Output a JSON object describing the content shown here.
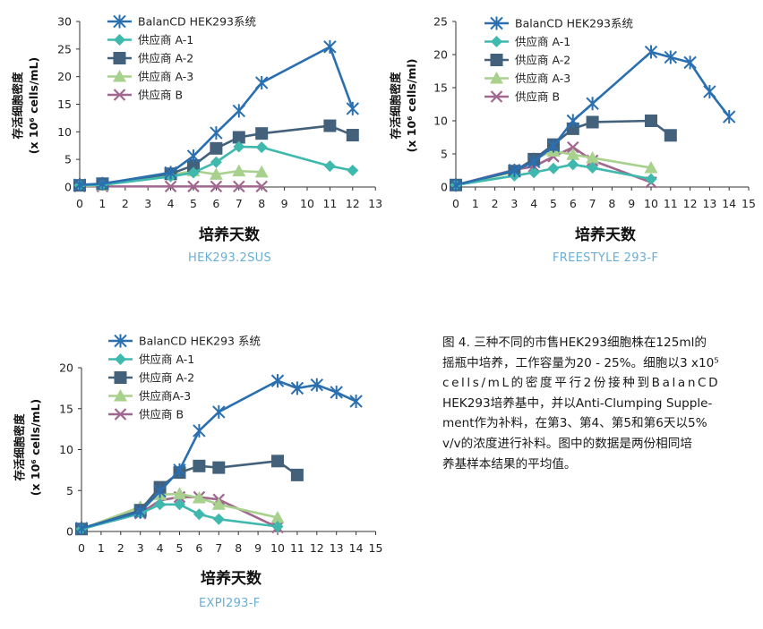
{
  "colors": {
    "balancd": "#2a6fb0",
    "a1": "#3fb8ad",
    "a2": "#44617b",
    "a3": "#a9d18e",
    "b": "#a0678f",
    "subtitle": "#6aaed6"
  },
  "chart_data": [
    {
      "type": "line",
      "subtitle": "HEK293.2SUS",
      "xlabel": "培养天数",
      "ylabel_line1": "存活细胞密度",
      "ylabel_line2": "(x 10⁶ cells/mL)",
      "xlim": [
        0,
        13
      ],
      "ylim": [
        0,
        30
      ],
      "xticks": [
        "0",
        "1",
        "2",
        "3",
        "4",
        "5",
        "6",
        "7",
        "8",
        "9",
        "10",
        "11",
        "12",
        "13"
      ],
      "yticks": [
        "0",
        "5",
        "10",
        "15",
        "20",
        "25",
        "30"
      ],
      "series": [
        {
          "name": "BalanCD HEK293系统",
          "marker": "star",
          "color_key": "balancd",
          "x": [
            0,
            1,
            4,
            5,
            6,
            7,
            8,
            11,
            12
          ],
          "y": [
            0.4,
            0.6,
            2.6,
            5.6,
            9.8,
            13.8,
            18.9,
            25.4,
            14.2
          ]
        },
        {
          "name": "供应商 A-1",
          "marker": "diamond",
          "color_key": "a1",
          "x": [
            0,
            1,
            4,
            5,
            6,
            7,
            8,
            11,
            12
          ],
          "y": [
            0.3,
            0.4,
            1.9,
            2.6,
            4.5,
            7.3,
            7.2,
            3.8,
            3.0
          ]
        },
        {
          "name": "供应商 A-2",
          "marker": "square",
          "color_key": "a2",
          "x": [
            0,
            1,
            4,
            5,
            6,
            7,
            8,
            11,
            12
          ],
          "y": [
            0.3,
            0.6,
            2.4,
            3.9,
            7.0,
            9.0,
            9.7,
            11.1,
            9.4
          ]
        },
        {
          "name": "供应商 A-3",
          "marker": "triangle",
          "color_key": "a3",
          "x": [
            0,
            1,
            4,
            5,
            6,
            7,
            8
          ],
          "y": [
            0.2,
            0.3,
            2.2,
            2.9,
            2.3,
            2.9,
            2.7
          ]
        },
        {
          "name": "供应商 B",
          "marker": "cross",
          "color_key": "b",
          "x": [
            0,
            1,
            4,
            5,
            6,
            7,
            8
          ],
          "y": [
            0.1,
            0.1,
            0.1,
            0.1,
            0.1,
            0.1,
            0.1
          ]
        }
      ]
    },
    {
      "type": "line",
      "subtitle": "FREESTYLE 293-F",
      "xlabel": "培养天数",
      "ylabel_line1": "存活细胞密度",
      "ylabel_line2": "(x 10⁶ cells/ml)",
      "xlim": [
        0,
        15
      ],
      "ylim": [
        0,
        25
      ],
      "xticks": [
        "0",
        "1",
        "2",
        "3",
        "4",
        "5",
        "6",
        "7",
        "8",
        "9",
        "10",
        "11",
        "12",
        "13",
        "14",
        "15"
      ],
      "yticks": [
        "0",
        "5",
        "10",
        "15",
        "20",
        "25"
      ],
      "series": [
        {
          "name": "BalanCD HEK293系统",
          "marker": "star",
          "color_key": "balancd",
          "x": [
            0,
            3,
            4,
            5,
            6,
            7,
            10,
            11,
            12,
            13,
            14
          ],
          "y": [
            0.3,
            2.5,
            3.8,
            6.2,
            10.0,
            12.6,
            20.4,
            19.6,
            18.8,
            14.4,
            10.6
          ]
        },
        {
          "name": "供应商 A-1",
          "marker": "diamond",
          "color_key": "a1",
          "x": [
            0,
            3,
            4,
            5,
            6,
            7,
            10
          ],
          "y": [
            0.3,
            1.7,
            2.2,
            2.8,
            3.4,
            2.9,
            1.2
          ]
        },
        {
          "name": "供应商 A-2",
          "marker": "square",
          "color_key": "a2",
          "x": [
            0,
            3,
            4,
            5,
            6,
            7,
            10,
            11
          ],
          "y": [
            0.3,
            2.4,
            4.2,
            6.4,
            8.8,
            9.8,
            10.0,
            7.8
          ]
        },
        {
          "name": "供应商 A-3",
          "marker": "triangle",
          "color_key": "a3",
          "x": [
            0,
            3,
            4,
            5,
            6,
            7,
            10
          ],
          "y": [
            0.3,
            2.3,
            4.3,
            5.4,
            4.9,
            4.4,
            2.9
          ]
        },
        {
          "name": "供应商 B",
          "marker": "cross",
          "color_key": "b",
          "x": [
            0,
            3,
            4,
            5,
            6,
            7,
            10
          ],
          "y": [
            0.3,
            2.6,
            3.1,
            4.6,
            6.0,
            4.0,
            0.7
          ]
        }
      ]
    },
    {
      "type": "line",
      "subtitle": "EXPI293-F",
      "xlabel": "培养天数",
      "ylabel_line1": "存活细胞密度",
      "ylabel_line2": "(x 10⁶ cells/mL)",
      "xlim": [
        0,
        15
      ],
      "ylim": [
        0,
        20
      ],
      "xticks": [
        "0",
        "1",
        "2",
        "3",
        "4",
        "5",
        "6",
        "7",
        "8",
        "9",
        "10",
        "11",
        "12",
        "13",
        "14",
        "15"
      ],
      "yticks": [
        "0",
        "5",
        "10",
        "15",
        "20"
      ],
      "series": [
        {
          "name": "BalanCD HEK293 系统",
          "marker": "star",
          "color_key": "balancd",
          "x": [
            0,
            3,
            4,
            5,
            6,
            7,
            10,
            11,
            12,
            13,
            14
          ],
          "y": [
            0.4,
            2.4,
            4.9,
            7.5,
            12.3,
            14.6,
            18.4,
            17.5,
            17.9,
            17.0,
            15.9
          ]
        },
        {
          "name": "供应商 A-1",
          "marker": "diamond",
          "color_key": "a1",
          "x": [
            0,
            3,
            4,
            5,
            6,
            7,
            10
          ],
          "y": [
            0.3,
            2.2,
            3.3,
            3.3,
            2.1,
            1.5,
            0.6
          ]
        },
        {
          "name": "供应商 A-2",
          "marker": "square",
          "color_key": "a2",
          "x": [
            0,
            3,
            4,
            5,
            6,
            7,
            10,
            11
          ],
          "y": [
            0.3,
            2.6,
            5.4,
            7.2,
            8.0,
            7.8,
            8.6,
            6.9
          ]
        },
        {
          "name": "供应商A-3",
          "marker": "triangle",
          "color_key": "a3",
          "x": [
            0,
            3,
            4,
            5,
            6,
            7,
            10
          ],
          "y": [
            0.3,
            3.0,
            4.5,
            4.6,
            4.1,
            3.3,
            1.7
          ]
        },
        {
          "name": "供应商 B",
          "marker": "cross",
          "color_key": "b",
          "x": [
            0,
            3,
            4,
            5,
            6,
            7,
            10
          ],
          "y": [
            0.3,
            2.2,
            3.8,
            4.2,
            4.2,
            3.9,
            0.5
          ]
        }
      ]
    }
  ],
  "caption": {
    "lines": [
      "图 4. 三种不同的市售HEK293细胞株在125ml的",
      "摇瓶中培养，工作容量为20 - 25%。细胞以3 x10⁵",
      "cells/mL的密度平行2份接种到BalanCD",
      "HEK293培养基中，并以Anti-Clumping Supple-",
      "ment作为补料，在第3、第4、第5和第6天以5%",
      "v/v的浓度进行补料。图中的数据是两份相同培",
      "养基样本结果的平均值。"
    ]
  }
}
